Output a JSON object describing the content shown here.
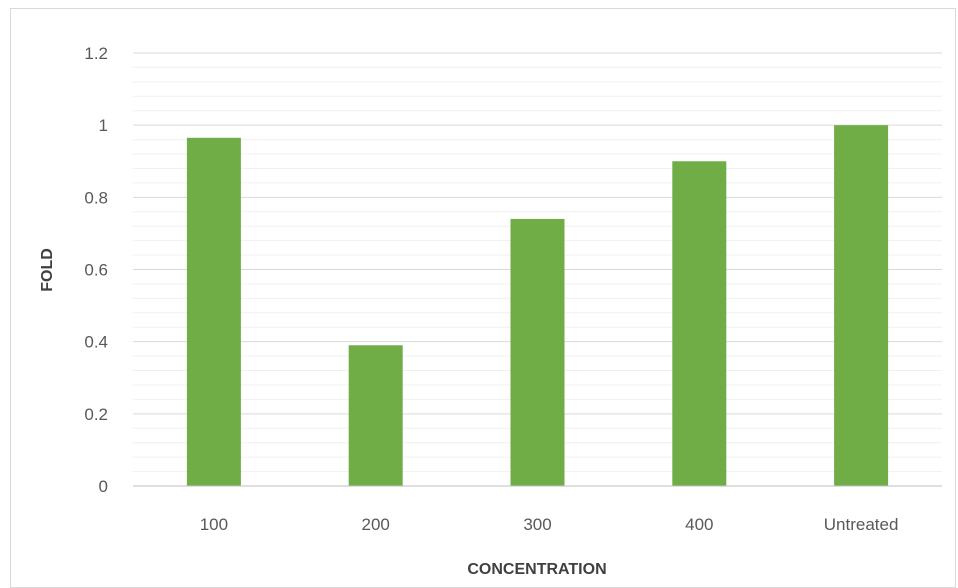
{
  "chart_data": {
    "type": "bar",
    "title": "",
    "xlabel": "CONCENTRATION",
    "ylabel": "FOLD",
    "categories": [
      "100",
      "200",
      "300",
      "400",
      "Untreated"
    ],
    "values": [
      0.965,
      0.39,
      0.74,
      0.9,
      1.0
    ],
    "ylim": [
      0,
      1.2
    ],
    "y_ticks": [
      "0",
      "0.2",
      "0.4",
      "0.6",
      "0.8",
      "1",
      "1.2"
    ],
    "y_tick_values": [
      0,
      0.2,
      0.4,
      0.6,
      0.8,
      1.0,
      1.2
    ],
    "grid": "on",
    "legend": "none",
    "colors": {
      "bar": "#70ad47",
      "gridline": "#d9d9d9",
      "minor_gridline": "#f0f0f0",
      "axis": "#bfbfbf"
    }
  }
}
